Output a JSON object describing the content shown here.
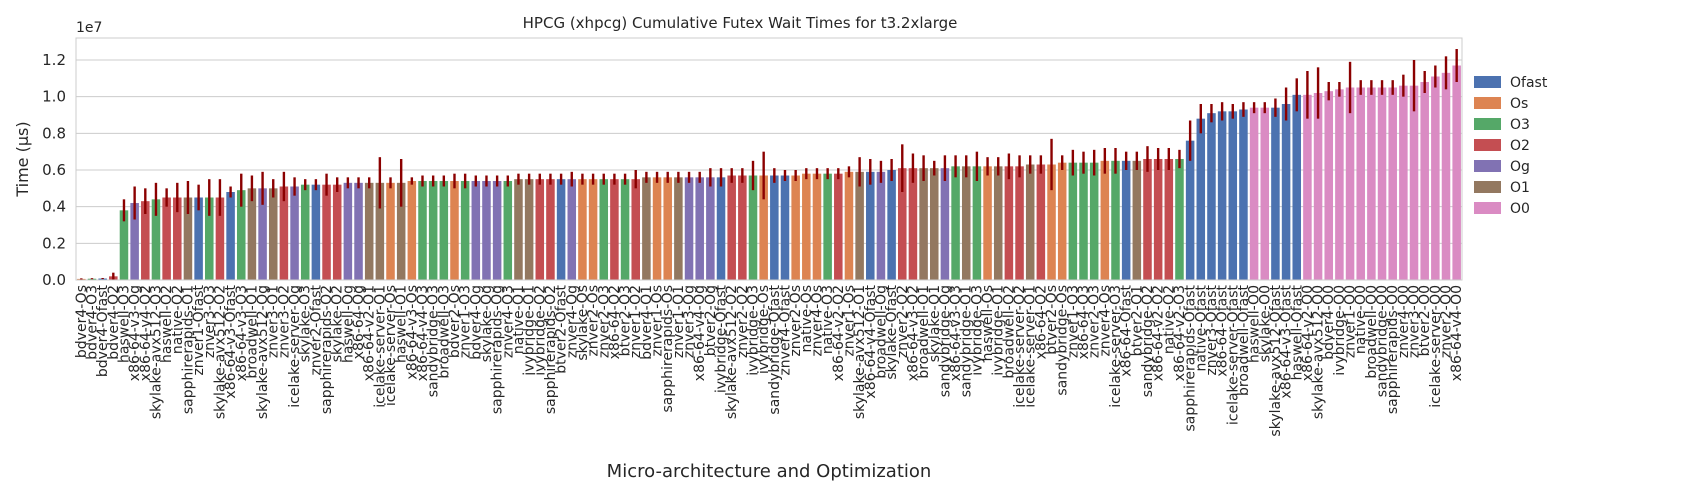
{
  "chart_data": {
    "type": "bar",
    "title": "HPCG (xhpcg) Cumulative Futex Wait Times for t3.2xlarge",
    "xlabel": "Micro-architecture and Optimization",
    "ylabel": "Time (µs)",
    "y_exponent_label": "1e7",
    "ylim": [
      0,
      13200000
    ],
    "yticks": [
      0,
      2000000,
      4000000,
      6000000,
      8000000,
      10000000,
      12000000
    ],
    "ytick_labels": [
      "0.0",
      "0.2",
      "0.4",
      "0.6",
      "0.8",
      "1.0",
      "1.2"
    ],
    "grid": "horizontal",
    "legend_position": "right",
    "legend": [
      "Ofast",
      "Os",
      "O3",
      "O2",
      "Og",
      "O1",
      "O0"
    ],
    "colors": {
      "Ofast": "#4c72b0",
      "Os": "#dd8452",
      "O3": "#55a868",
      "O2": "#c44e52",
      "Og": "#8172b3",
      "O1": "#937860",
      "O0": "#da8bc3"
    },
    "error_color": "#8b0000",
    "bars": [
      {
        "label": "bdver4-Os",
        "opt": "Os",
        "value": 60000,
        "err": 30000
      },
      {
        "label": "bdver4-O3",
        "opt": "O3",
        "value": 70000,
        "err": 30000
      },
      {
        "label": "bdver4-Ofast",
        "opt": "Ofast",
        "value": 80000,
        "err": 30000
      },
      {
        "label": "bdver4-O2",
        "opt": "O2",
        "value": 200000,
        "err": 200000
      },
      {
        "label": "haswell-O3",
        "opt": "O3",
        "value": 3800000,
        "err": 600000
      },
      {
        "label": "x86-64-v3-Og",
        "opt": "Og",
        "value": 4200000,
        "err": 900000
      },
      {
        "label": "x86-64-v4-O2",
        "opt": "O2",
        "value": 4300000,
        "err": 700000
      },
      {
        "label": "skylake-avx512-O3",
        "opt": "O3",
        "value": 4400000,
        "err": 900000
      },
      {
        "label": "haswell-O2",
        "opt": "O2",
        "value": 4500000,
        "err": 500000
      },
      {
        "label": "native-O2",
        "opt": "O2",
        "value": 4500000,
        "err": 800000
      },
      {
        "label": "sapphirerapids-O1",
        "opt": "O1",
        "value": 4500000,
        "err": 900000
      },
      {
        "label": "znver1-Ofast",
        "opt": "Ofast",
        "value": 4500000,
        "err": 700000
      },
      {
        "label": "znver3-O3",
        "opt": "O3",
        "value": 4500000,
        "err": 1000000
      },
      {
        "label": "skylake-avx512-O2",
        "opt": "O2",
        "value": 4500000,
        "err": 1000000
      },
      {
        "label": "x86-64-v3-Ofast",
        "opt": "Ofast",
        "value": 4800000,
        "err": 300000
      },
      {
        "label": "x86-64-v3-O3",
        "opt": "O3",
        "value": 4900000,
        "err": 900000
      },
      {
        "label": "broadwell-O1",
        "opt": "O1",
        "value": 5000000,
        "err": 700000
      },
      {
        "label": "skylake-avx512-Og",
        "opt": "Og",
        "value": 5000000,
        "err": 900000
      },
      {
        "label": "znver3-O1",
        "opt": "O1",
        "value": 5000000,
        "err": 500000
      },
      {
        "label": "znver3-O2",
        "opt": "O2",
        "value": 5100000,
        "err": 800000
      },
      {
        "label": "icelake-server-Og",
        "opt": "Og",
        "value": 5100000,
        "err": 500000
      },
      {
        "label": "skylake-O3",
        "opt": "O3",
        "value": 5200000,
        "err": 300000
      },
      {
        "label": "znver2-Ofast",
        "opt": "Ofast",
        "value": 5200000,
        "err": 300000
      },
      {
        "label": "sapphirerapids-O2",
        "opt": "O2",
        "value": 5200000,
        "err": 600000
      },
      {
        "label": "skylake-O2",
        "opt": "O2",
        "value": 5200000,
        "err": 400000
      },
      {
        "label": "haswell-Og",
        "opt": "Og",
        "value": 5300000,
        "err": 300000
      },
      {
        "label": "x86-64-Og",
        "opt": "Og",
        "value": 5300000,
        "err": 300000
      },
      {
        "label": "x86-64-v2-O1",
        "opt": "O1",
        "value": 5300000,
        "err": 300000
      },
      {
        "label": "icelake-server-O1",
        "opt": "O1",
        "value": 5300000,
        "err": 1400000
      },
      {
        "label": "icelake-server-Os",
        "opt": "Os",
        "value": 5300000,
        "err": 300000
      },
      {
        "label": "haswell-O1",
        "opt": "O1",
        "value": 5300000,
        "err": 1300000
      },
      {
        "label": "x86-64-v3-Os",
        "opt": "Os",
        "value": 5400000,
        "err": 200000
      },
      {
        "label": "x86-64-v4-O3",
        "opt": "O3",
        "value": 5400000,
        "err": 300000
      },
      {
        "label": "sandybridge-O3",
        "opt": "O3",
        "value": 5400000,
        "err": 300000
      },
      {
        "label": "broadwell-O3",
        "opt": "O3",
        "value": 5400000,
        "err": 300000
      },
      {
        "label": "bdver2-Os",
        "opt": "Os",
        "value": 5400000,
        "err": 400000
      },
      {
        "label": "znver1-O3",
        "opt": "O3",
        "value": 5400000,
        "err": 400000
      },
      {
        "label": "bdver4-Og",
        "opt": "Og",
        "value": 5400000,
        "err": 300000
      },
      {
        "label": "skylake-Og",
        "opt": "Og",
        "value": 5400000,
        "err": 300000
      },
      {
        "label": "sapphirerapids-Og",
        "opt": "Og",
        "value": 5400000,
        "err": 300000
      },
      {
        "label": "znver4-O3",
        "opt": "O3",
        "value": 5400000,
        "err": 300000
      },
      {
        "label": "native-O1",
        "opt": "O1",
        "value": 5500000,
        "err": 300000
      },
      {
        "label": "ivybridge-O1",
        "opt": "O1",
        "value": 5500000,
        "err": 300000
      },
      {
        "label": "ivybridge-O2",
        "opt": "O2",
        "value": 5500000,
        "err": 300000
      },
      {
        "label": "sapphirerapids-O2",
        "opt": "O2",
        "value": 5500000,
        "err": 300000
      },
      {
        "label": "btver2-Ofast",
        "opt": "Ofast",
        "value": 5500000,
        "err": 300000
      },
      {
        "label": "znver4-Og",
        "opt": "Og",
        "value": 5500000,
        "err": 400000
      },
      {
        "label": "skylake-Os",
        "opt": "Os",
        "value": 5500000,
        "err": 300000
      },
      {
        "label": "znver2-Os",
        "opt": "Os",
        "value": 5500000,
        "err": 300000
      },
      {
        "label": "znver2-O3",
        "opt": "O3",
        "value": 5500000,
        "err": 300000
      },
      {
        "label": "x86-64-O2",
        "opt": "O2",
        "value": 5500000,
        "err": 300000
      },
      {
        "label": "btver2-O3",
        "opt": "O3",
        "value": 5500000,
        "err": 300000
      },
      {
        "label": "znver1-O2",
        "opt": "O2",
        "value": 5500000,
        "err": 500000
      },
      {
        "label": "bdver4-O1",
        "opt": "O1",
        "value": 5600000,
        "err": 300000
      },
      {
        "label": "znver1-Os",
        "opt": "Os",
        "value": 5600000,
        "err": 300000
      },
      {
        "label": "sapphirerapids-Os",
        "opt": "Os",
        "value": 5600000,
        "err": 300000
      },
      {
        "label": "znver1-O1",
        "opt": "O1",
        "value": 5600000,
        "err": 300000
      },
      {
        "label": "znver3-Og",
        "opt": "Og",
        "value": 5600000,
        "err": 300000
      },
      {
        "label": "x86-64-v4-Og",
        "opt": "Og",
        "value": 5600000,
        "err": 300000
      },
      {
        "label": "btver2-Og",
        "opt": "Og",
        "value": 5600000,
        "err": 500000
      },
      {
        "label": "ivybridge-Ofast",
        "opt": "Ofast",
        "value": 5600000,
        "err": 500000
      },
      {
        "label": "skylake-avx512-O2",
        "opt": "O2",
        "value": 5700000,
        "err": 400000
      },
      {
        "label": "znver2-O2",
        "opt": "O2",
        "value": 5700000,
        "err": 400000
      },
      {
        "label": "ivybridge-O3",
        "opt": "O3",
        "value": 5700000,
        "err": 800000
      },
      {
        "label": "ivybridge-Os",
        "opt": "Os",
        "value": 5700000,
        "err": 1300000
      },
      {
        "label": "sandybridge-Ofast",
        "opt": "Ofast",
        "value": 5700000,
        "err": 400000
      },
      {
        "label": "znver4-Ofast",
        "opt": "Ofast",
        "value": 5700000,
        "err": 300000
      },
      {
        "label": "znver2-Os",
        "opt": "Os",
        "value": 5700000,
        "err": 300000
      },
      {
        "label": "native-Os",
        "opt": "Os",
        "value": 5800000,
        "err": 300000
      },
      {
        "label": "znver4-Os",
        "opt": "Os",
        "value": 5800000,
        "err": 300000
      },
      {
        "label": "native-O3",
        "opt": "O3",
        "value": 5800000,
        "err": 300000
      },
      {
        "label": "x86-64-v2-O2",
        "opt": "O2",
        "value": 5800000,
        "err": 300000
      },
      {
        "label": "znver1-Os",
        "opt": "Os",
        "value": 5900000,
        "err": 300000
      },
      {
        "label": "skylake-avx512-O1",
        "opt": "O1",
        "value": 5900000,
        "err": 800000
      },
      {
        "label": "x86-64-v4-Ofast",
        "opt": "Ofast",
        "value": 5900000,
        "err": 700000
      },
      {
        "label": "broadwell-Og",
        "opt": "Og",
        "value": 5900000,
        "err": 600000
      },
      {
        "label": "skylake-Ofast",
        "opt": "Ofast",
        "value": 6000000,
        "err": 600000
      },
      {
        "label": "znver2-O2",
        "opt": "O2",
        "value": 6100000,
        "err": 1300000
      },
      {
        "label": "x86-64-v3-O2",
        "opt": "O2",
        "value": 6100000,
        "err": 800000
      },
      {
        "label": "broadwell-O1",
        "opt": "O1",
        "value": 6100000,
        "err": 700000
      },
      {
        "label": "skylake-O1",
        "opt": "O1",
        "value": 6100000,
        "err": 400000
      },
      {
        "label": "sandybridge-Og",
        "opt": "Og",
        "value": 6100000,
        "err": 700000
      },
      {
        "label": "x86-64-v3-O3",
        "opt": "O3",
        "value": 6200000,
        "err": 600000
      },
      {
        "label": "sandybridge-O1",
        "opt": "O1",
        "value": 6200000,
        "err": 600000
      },
      {
        "label": "ivybridge-O3",
        "opt": "O3",
        "value": 6200000,
        "err": 800000
      },
      {
        "label": "haswell-Os",
        "opt": "Os",
        "value": 6200000,
        "err": 500000
      },
      {
        "label": "ivybridge-O1",
        "opt": "O1",
        "value": 6200000,
        "err": 500000
      },
      {
        "label": "broadwell-O2",
        "opt": "O2",
        "value": 6200000,
        "err": 700000
      },
      {
        "label": "icelake-server-O2",
        "opt": "O2",
        "value": 6200000,
        "err": 600000
      },
      {
        "label": "icelake-server-O1",
        "opt": "O1",
        "value": 6300000,
        "err": 500000
      },
      {
        "label": "x86-64-O2",
        "opt": "O2",
        "value": 6300000,
        "err": 500000
      },
      {
        "label": "btver2-Os",
        "opt": "Os",
        "value": 6300000,
        "err": 1400000
      },
      {
        "label": "sandybridge-Os",
        "opt": "Os",
        "value": 6400000,
        "err": 400000
      },
      {
        "label": "znver1-O3",
        "opt": "O3",
        "value": 6400000,
        "err": 700000
      },
      {
        "label": "x86-64-O3",
        "opt": "O3",
        "value": 6400000,
        "err": 600000
      },
      {
        "label": "znver2-O3",
        "opt": "O3",
        "value": 6400000,
        "err": 700000
      },
      {
        "label": "znver4-Os",
        "opt": "Os",
        "value": 6500000,
        "err": 700000
      },
      {
        "label": "icelake-server-O3",
        "opt": "O3",
        "value": 6500000,
        "err": 700000
      },
      {
        "label": "x86-64-Ofast",
        "opt": "Ofast",
        "value": 6500000,
        "err": 500000
      },
      {
        "label": "btver2-O1",
        "opt": "O1",
        "value": 6500000,
        "err": 500000
      },
      {
        "label": "sandybridge-O2",
        "opt": "O2",
        "value": 6600000,
        "err": 700000
      },
      {
        "label": "x86-64-v2-O2",
        "opt": "O2",
        "value": 6600000,
        "err": 600000
      },
      {
        "label": "native-O2",
        "opt": "O2",
        "value": 6600000,
        "err": 600000
      },
      {
        "label": "x86-64-v2-O3",
        "opt": "O3",
        "value": 6600000,
        "err": 500000
      },
      {
        "label": "sapphirerapids-Ofast",
        "opt": "Ofast",
        "value": 7600000,
        "err": 1100000
      },
      {
        "label": "native-Ofast",
        "opt": "Ofast",
        "value": 8800000,
        "err": 800000
      },
      {
        "label": "znver3-Ofast",
        "opt": "Ofast",
        "value": 9100000,
        "err": 500000
      },
      {
        "label": "x86-64-Ofast",
        "opt": "Ofast",
        "value": 9200000,
        "err": 500000
      },
      {
        "label": "icelake-server-Ofast",
        "opt": "Ofast",
        "value": 9200000,
        "err": 400000
      },
      {
        "label": "broadwell-Ofast",
        "opt": "Ofast",
        "value": 9300000,
        "err": 400000
      },
      {
        "label": "haswell-O0",
        "opt": "O0",
        "value": 9400000,
        "err": 300000
      },
      {
        "label": "skylake-O0",
        "opt": "O0",
        "value": 9400000,
        "err": 300000
      },
      {
        "label": "skylake-avx512-Ofast",
        "opt": "Ofast",
        "value": 9400000,
        "err": 500000
      },
      {
        "label": "x86-64-v3-Ofast",
        "opt": "Ofast",
        "value": 9600000,
        "err": 900000
      },
      {
        "label": "haswell-Ofast",
        "opt": "Ofast",
        "value": 10100000,
        "err": 900000
      },
      {
        "label": "x86-64-v2-O0",
        "opt": "O0",
        "value": 10100000,
        "err": 1300000
      },
      {
        "label": "skylake-avx512-O0",
        "opt": "O0",
        "value": 10200000,
        "err": 1400000
      },
      {
        "label": "bdver4-O0",
        "opt": "O0",
        "value": 10300000,
        "err": 500000
      },
      {
        "label": "ivybridge-O0",
        "opt": "O0",
        "value": 10400000,
        "err": 400000
      },
      {
        "label": "znver1-O0",
        "opt": "O0",
        "value": 10500000,
        "err": 1400000
      },
      {
        "label": "native-O0",
        "opt": "O0",
        "value": 10500000,
        "err": 400000
      },
      {
        "label": "broadwell-O0",
        "opt": "O0",
        "value": 10500000,
        "err": 400000
      },
      {
        "label": "sandybridge-O0",
        "opt": "O0",
        "value": 10500000,
        "err": 400000
      },
      {
        "label": "sapphirerapids-O0",
        "opt": "O0",
        "value": 10500000,
        "err": 400000
      },
      {
        "label": "znver4-O0",
        "opt": "O0",
        "value": 10600000,
        "err": 600000
      },
      {
        "label": "znver3-O0",
        "opt": "O0",
        "value": 10600000,
        "err": 1400000
      },
      {
        "label": "btver2-O0",
        "opt": "O0",
        "value": 10800000,
        "err": 600000
      },
      {
        "label": "icelake-server-O0",
        "opt": "O0",
        "value": 11100000,
        "err": 600000
      },
      {
        "label": "znver2-O0",
        "opt": "O0",
        "value": 11300000,
        "err": 900000
      },
      {
        "label": "x86-64-v4-O0",
        "opt": "O0",
        "value": 11700000,
        "err": 900000
      }
    ]
  }
}
